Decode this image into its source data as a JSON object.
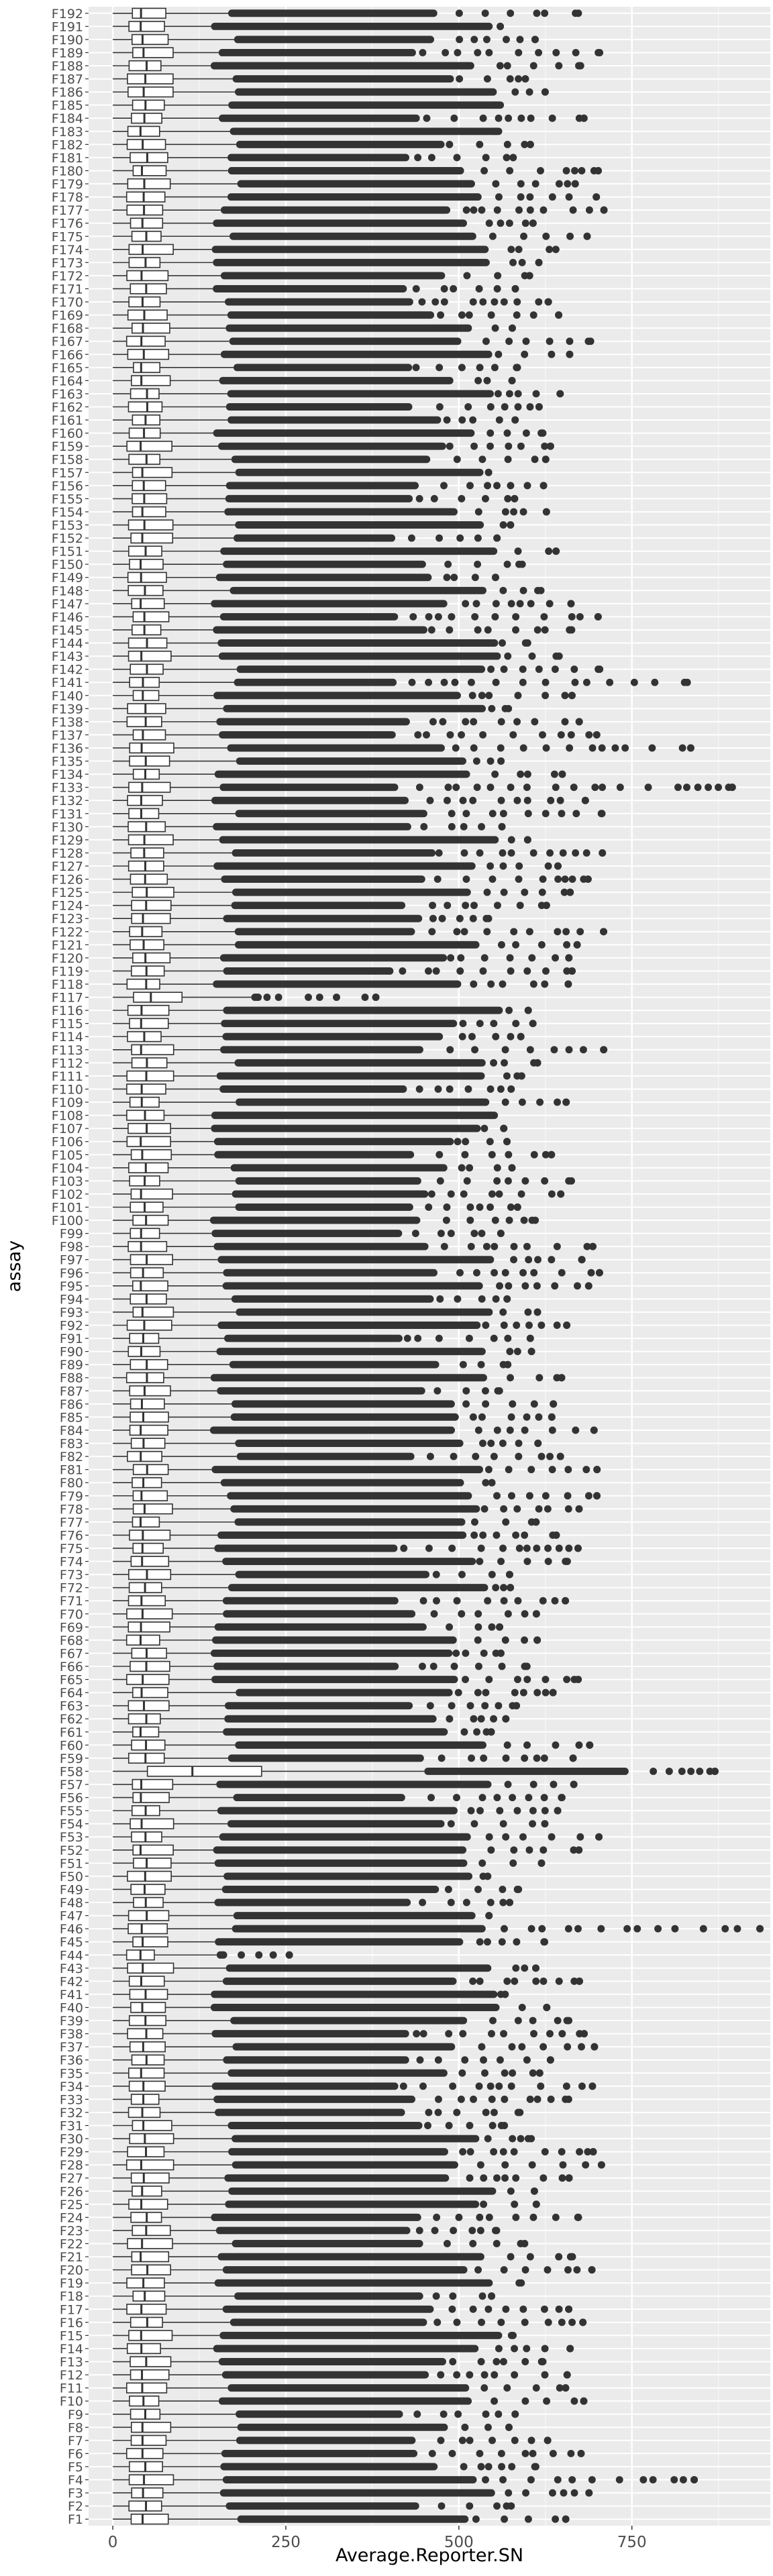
{
  "chart_data": {
    "type": "boxplot",
    "orientation": "horizontal",
    "title": "",
    "xlabel": "Average.Reporter.SN",
    "ylabel": "assay",
    "xlim": [
      -35,
      950
    ],
    "xticks": [
      0,
      250,
      500,
      750
    ],
    "x_tick_labels": [
      "0",
      "250",
      "500",
      "750"
    ],
    "grid": true,
    "legend": "none",
    "colors": {
      "panel_background": "#ebebeb",
      "grid_major": "#ffffff",
      "grid_minor": "#f5f5f5",
      "box_fill": "#ffffff",
      "box_line": "#333333",
      "outlier": "#333333",
      "text": "#4d4d4d",
      "axis_title": "#000000"
    },
    "categories": [
      "F1",
      "F2",
      "F3",
      "F4",
      "F5",
      "F6",
      "F7",
      "F8",
      "F9",
      "F10",
      "F11",
      "F12",
      "F13",
      "F14",
      "F15",
      "F16",
      "F17",
      "F18",
      "F19",
      "F20",
      "F21",
      "F22",
      "F23",
      "F24",
      "F25",
      "F26",
      "F27",
      "F28",
      "F29",
      "F30",
      "F31",
      "F32",
      "F33",
      "F34",
      "F35",
      "F36",
      "F37",
      "F38",
      "F39",
      "F40",
      "F41",
      "F42",
      "F43",
      "F44",
      "F45",
      "F46",
      "F47",
      "F48",
      "F49",
      "F50",
      "F51",
      "F52",
      "F53",
      "F54",
      "F55",
      "F56",
      "F57",
      "F58",
      "F59",
      "F60",
      "F61",
      "F62",
      "F63",
      "F64",
      "F65",
      "F66",
      "F67",
      "F68",
      "F69",
      "F70",
      "F71",
      "F72",
      "F73",
      "F74",
      "F75",
      "F76",
      "F77",
      "F78",
      "F79",
      "F80",
      "F81",
      "F82",
      "F83",
      "F84",
      "F85",
      "F86",
      "F87",
      "F88",
      "F89",
      "F90",
      "F91",
      "F92",
      "F93",
      "F94",
      "F95",
      "F96",
      "F97",
      "F98",
      "F99",
      "F100",
      "F101",
      "F102",
      "F103",
      "F104",
      "F105",
      "F106",
      "F107",
      "F108",
      "F109",
      "F110",
      "F111",
      "F112",
      "F113",
      "F114",
      "F115",
      "F116",
      "F117",
      "F118",
      "F119",
      "F120",
      "F121",
      "F122",
      "F123",
      "F124",
      "F125",
      "F126",
      "F127",
      "F128",
      "F129",
      "F130",
      "F131",
      "F132",
      "F133",
      "F134",
      "F135",
      "F136",
      "F137",
      "F138",
      "F139",
      "F140",
      "F141",
      "F142",
      "F143",
      "F144",
      "F145",
      "F146",
      "F147",
      "F148",
      "F149",
      "F150",
      "F151",
      "F152",
      "F153",
      "F154",
      "F155",
      "F156",
      "F157",
      "F158",
      "F159",
      "F160",
      "F161",
      "F162",
      "F163",
      "F164",
      "F165",
      "F166",
      "F167",
      "F168",
      "F169",
      "F170",
      "F171",
      "F172",
      "F173",
      "F174",
      "F175",
      "F176",
      "F177",
      "F178",
      "F179",
      "F180",
      "F181",
      "F182",
      "F183",
      "F184",
      "F185",
      "F186",
      "F187",
      "F188",
      "F189",
      "F190",
      "F191",
      "F192"
    ],
    "series_summary": {
      "typical_q1": 25,
      "typical_median": 45,
      "typical_q3": 75,
      "typical_whisker_high": 160,
      "typical_max": 600
    },
    "overrides": [
      {
        "label": "F117",
        "q1": 30,
        "median": 55,
        "q3": 100,
        "whisker_high": 200,
        "outlier_max": 380,
        "dense_until": 210
      },
      {
        "label": "F58",
        "q1": 50,
        "median": 115,
        "q3": 215,
        "whisker_high": 450,
        "outlier_max": 870,
        "dense_until": 740
      },
      {
        "label": "F44",
        "q1": 20,
        "median": 40,
        "q3": 60,
        "whisker_high": 150,
        "outlier_max": 255,
        "dense_until": 160
      },
      {
        "label": "F46",
        "outlier_max": 935
      },
      {
        "label": "F133",
        "outlier_max": 895
      },
      {
        "label": "F4",
        "outlier_max": 840
      },
      {
        "label": "F141",
        "outlier_max": 830
      },
      {
        "label": "F136",
        "outlier_max": 835
      }
    ]
  }
}
